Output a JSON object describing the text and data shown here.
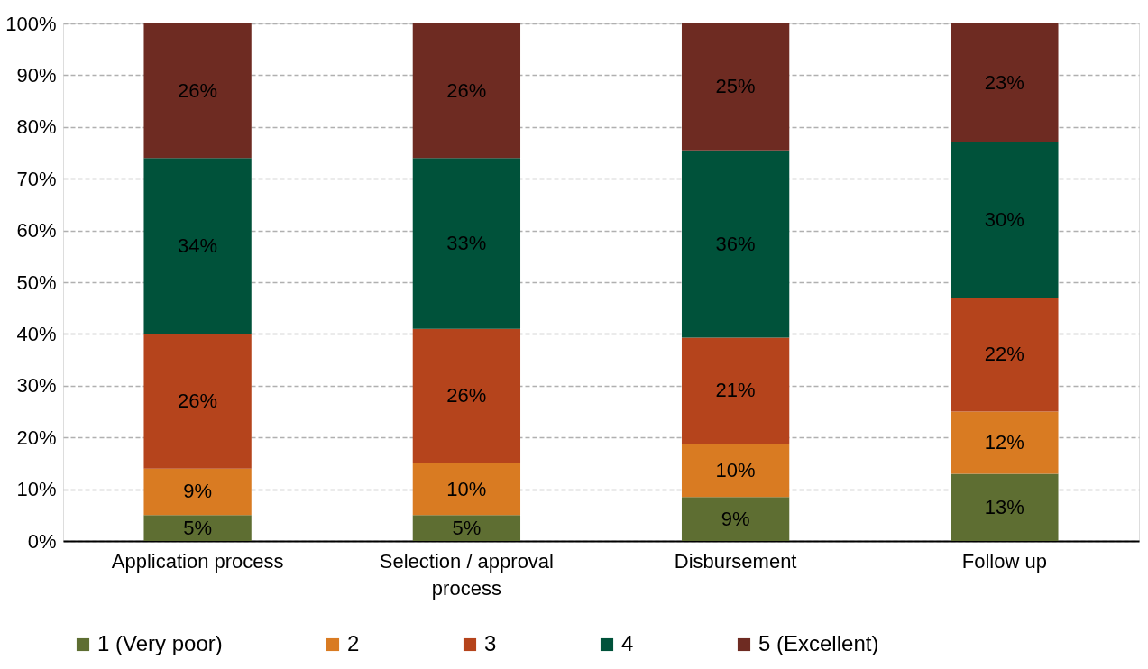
{
  "chart_data": {
    "type": "bar",
    "stacked": true,
    "categories": [
      "Application process",
      "Selection / approval process",
      "Disbursement",
      "Follow up"
    ],
    "series": [
      {
        "name": "1 (Very poor)",
        "color": "#5e6e32",
        "values": [
          5,
          5,
          8.5,
          13
        ],
        "value_labels": [
          "5%",
          "5%",
          "9%",
          "13%"
        ]
      },
      {
        "name": "2",
        "color": "#d97b22",
        "values": [
          9,
          10,
          10.3,
          12
        ],
        "value_labels": [
          "9%",
          "10%",
          "10%",
          "12%"
        ]
      },
      {
        "name": "3",
        "color": "#b5441c",
        "values": [
          26,
          26,
          20.5,
          22
        ],
        "value_labels": [
          "26%",
          "26%",
          "21%",
          "22%"
        ]
      },
      {
        "name": "4",
        "color": "#00523a",
        "values": [
          34,
          33,
          36.2,
          30
        ],
        "value_labels": [
          "34%",
          "33%",
          "36%",
          "30%"
        ]
      },
      {
        "name": "5 (Excellent)",
        "color": "#6e2b22",
        "values": [
          26,
          26,
          24.5,
          23
        ],
        "value_labels": [
          "26%",
          "26%",
          "25%",
          "23%"
        ]
      }
    ],
    "ylim": [
      0,
      100
    ],
    "yticks": [
      {
        "value": 0,
        "label": "0%"
      },
      {
        "value": 10,
        "label": "10%"
      },
      {
        "value": 20,
        "label": "20%"
      },
      {
        "value": 30,
        "label": "30%"
      },
      {
        "value": 40,
        "label": "40%"
      },
      {
        "value": 50,
        "label": "50%"
      },
      {
        "value": 60,
        "label": "60%"
      },
      {
        "value": 70,
        "label": "70%"
      },
      {
        "value": 80,
        "label": "80%"
      },
      {
        "value": 90,
        "label": "90%"
      },
      {
        "value": 100,
        "label": "100%"
      }
    ],
    "grid": "y",
    "line_style": "dashed",
    "legend": "bottom"
  }
}
